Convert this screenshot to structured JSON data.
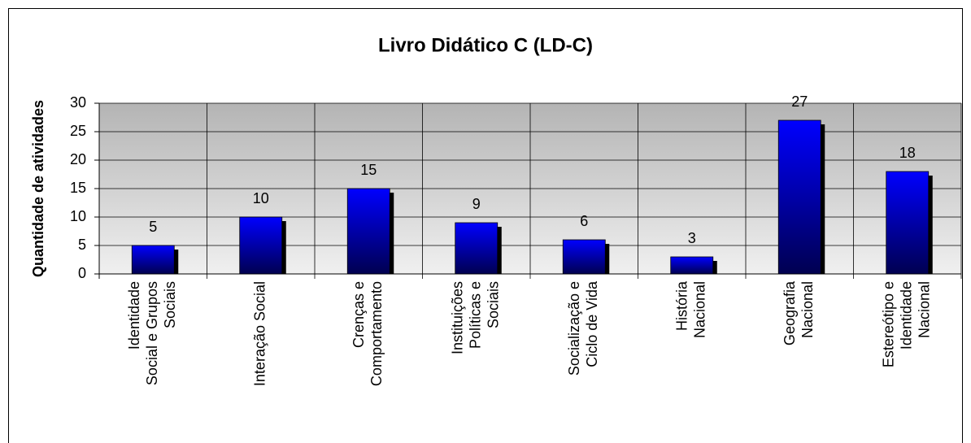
{
  "chart_data": {
    "type": "bar",
    "title": "Livro Didático C (LD-C)",
    "y_label": "Quantidade de atividades",
    "categories": [
      [
        "Identidade",
        "Social e Grupos",
        "Sociais"
      ],
      [
        "Interação Social"
      ],
      [
        "Crenças e",
        "Comportamento"
      ],
      [
        "Instituições",
        "Políticas e",
        "Sociais"
      ],
      [
        "Socialização e",
        "Ciclo de Vida"
      ],
      [
        "História",
        "Nacional"
      ],
      [
        "Geografia",
        "Nacional"
      ],
      [
        "Estereótipo e",
        "Identidade",
        "Nacional"
      ]
    ],
    "values": [
      5,
      10,
      15,
      9,
      6,
      3,
      27,
      18
    ],
    "color": "#0000ff",
    "ylim": [
      0,
      30
    ],
    "yticks": [
      0,
      5,
      10,
      15,
      20,
      25,
      30
    ],
    "grid": true
  }
}
